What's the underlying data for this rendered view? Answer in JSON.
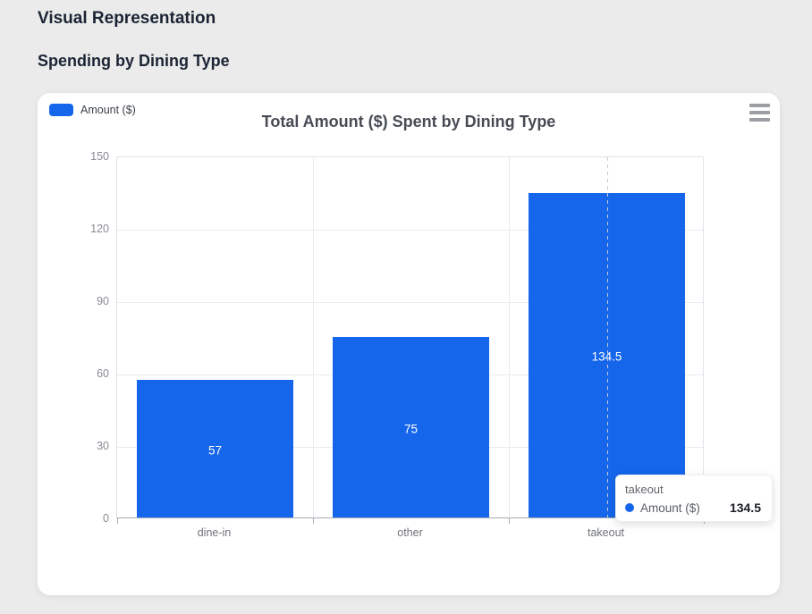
{
  "page": {
    "title": "Visual Representation",
    "subtitle": "Spending by Dining Type"
  },
  "colors": {
    "bar_blue": "#1566eb",
    "page_background": "#ebebeb",
    "card_background": "#ffffff"
  },
  "menu": {
    "icon": "hamburger-menu-icon"
  },
  "chart_data": {
    "type": "bar",
    "title": "Total Amount ($) Spent by Dining Type",
    "categories": [
      "dine-in",
      "other",
      "takeout"
    ],
    "series": [
      {
        "name": "Amount ($)",
        "color": "#1566eb",
        "values": [
          57,
          75,
          134.5
        ]
      }
    ],
    "xlabel": "",
    "ylabel": "",
    "ylim": [
      0,
      150
    ],
    "ytick_step": 30,
    "grid": true,
    "legend_position": "top-left",
    "value_labels": "inside-center-white",
    "highlighted_category": "takeout"
  },
  "tooltip": {
    "category": "takeout",
    "series": "Amount ($)",
    "value": "134.5",
    "dot_color": "#1566eb"
  }
}
